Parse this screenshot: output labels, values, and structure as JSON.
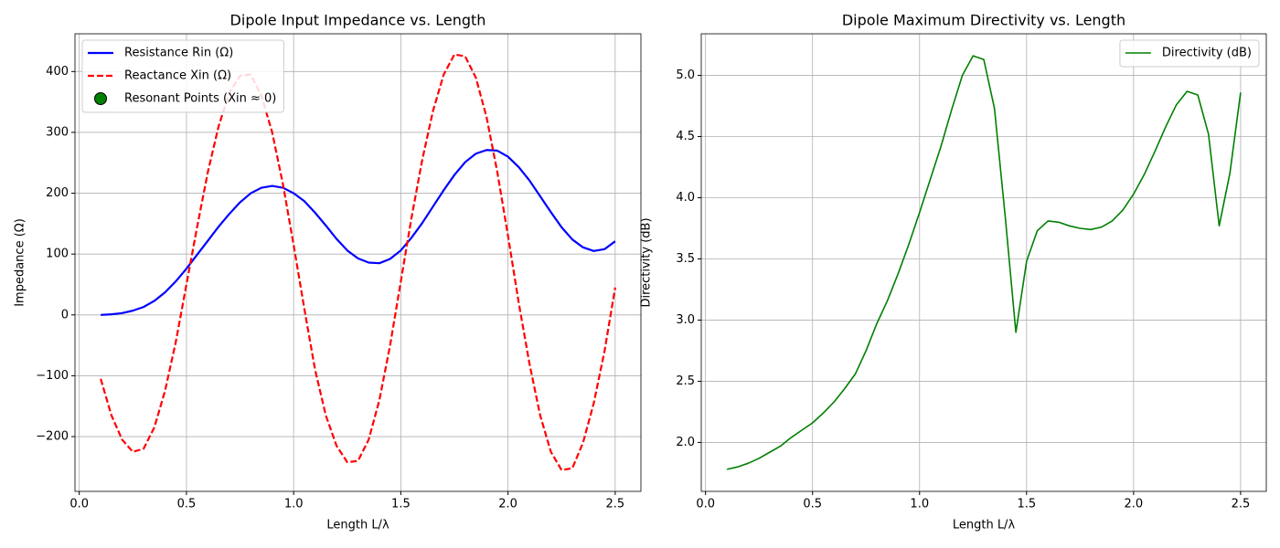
{
  "chart_data": [
    {
      "type": "line",
      "title": "Dipole Input Impedance vs. Length",
      "xlabel": "Length L/λ",
      "ylabel": "Impedance (Ω)",
      "x": [
        0.1,
        0.15,
        0.2,
        0.25,
        0.3,
        0.35,
        0.4,
        0.45,
        0.5,
        0.55,
        0.6,
        0.65,
        0.7,
        0.75,
        0.8,
        0.85,
        0.9,
        0.95,
        1.0,
        1.05,
        1.1,
        1.15,
        1.2,
        1.25,
        1.3,
        1.35,
        1.4,
        1.45,
        1.5,
        1.55,
        1.6,
        1.65,
        1.7,
        1.75,
        1.8,
        1.85,
        1.9,
        1.95,
        2.0,
        2.05,
        2.1,
        2.15,
        2.2,
        2.25,
        2.3,
        2.35,
        2.4,
        2.45,
        2.5
      ],
      "series": [
        {
          "name": "Resistance Rin (Ω)",
          "color": "#0000ff",
          "linestyle": "solid",
          "values": [
            0,
            1,
            3,
            7,
            13,
            23,
            37,
            55,
            76,
            99,
            122,
            145,
            166,
            185,
            200,
            209,
            212,
            209,
            200,
            187,
            168,
            147,
            125,
            106,
            93,
            86,
            85,
            92,
            106,
            127,
            151,
            178,
            205,
            230,
            251,
            265,
            271,
            270,
            260,
            243,
            221,
            195,
            169,
            144,
            124,
            111,
            105,
            108,
            121
          ]
        },
        {
          "name": "Reactance Xin (Ω)",
          "color": "#ff0000",
          "linestyle": "dashed",
          "values": [
            -105,
            -165,
            -205,
            -225,
            -220,
            -185,
            -125,
            -45,
            50,
            145,
            235,
            310,
            365,
            393,
            395,
            360,
            300,
            215,
            115,
            10,
            -90,
            -165,
            -215,
            -242,
            -240,
            -205,
            -140,
            -50,
            55,
            160,
            255,
            335,
            395,
            428,
            425,
            390,
            325,
            235,
            130,
            20,
            -80,
            -165,
            -225,
            -255,
            -252,
            -210,
            -145,
            -60,
            45
          ]
        },
        {
          "name": "Resonant Points (Xin ≈ 0)",
          "color": "#008000",
          "edgecolor": "#000000",
          "marker": "scatter",
          "x": [],
          "values": []
        }
      ],
      "xlim": [
        -0.02,
        2.62
      ],
      "ylim": [
        -290,
        462
      ],
      "xticks": [
        {
          "value": 0,
          "label": "0.0"
        },
        0.5,
        {
          "value": 1,
          "label": "1.0"
        },
        1.5,
        {
          "value": 2,
          "label": "2.0"
        },
        2.5
      ],
      "yticks": [
        {
          "value": -200,
          "label": "−200"
        },
        {
          "value": -100,
          "label": "−100"
        },
        0,
        100,
        200,
        300,
        400
      ],
      "grid": true,
      "legend": "upper left"
    },
    {
      "type": "line",
      "title": "Dipole Maximum Directivity vs. Length",
      "xlabel": "Length L/λ",
      "ylabel": "Directivity (dB)",
      "x": [
        0.1,
        0.15,
        0.2,
        0.25,
        0.3,
        0.35,
        0.4,
        0.45,
        0.5,
        0.55,
        0.6,
        0.65,
        0.7,
        0.75,
        0.8,
        0.85,
        0.9,
        0.95,
        1.0,
        1.05,
        1.1,
        1.15,
        1.2,
        1.25,
        1.3,
        1.35,
        1.4,
        1.45,
        1.5,
        1.55,
        1.6,
        1.65,
        1.7,
        1.75,
        1.8,
        1.85,
        1.9,
        1.95,
        2.0,
        2.05,
        2.1,
        2.15,
        2.2,
        2.25,
        2.3,
        2.35,
        2.4,
        2.45,
        2.5
      ],
      "series": [
        {
          "name": "Directivity (dB)",
          "color": "#008000",
          "linestyle": "solid",
          "values": [
            1.78,
            1.8,
            1.83,
            1.87,
            1.92,
            1.97,
            2.04,
            2.1,
            2.16,
            2.24,
            2.33,
            2.44,
            2.56,
            2.75,
            2.97,
            3.16,
            3.38,
            3.62,
            3.88,
            4.15,
            4.42,
            4.72,
            5.0,
            5.16,
            5.13,
            4.73,
            3.85,
            2.9,
            3.48,
            3.73,
            3.81,
            3.8,
            3.77,
            3.75,
            3.74,
            3.76,
            3.81,
            3.9,
            4.03,
            4.19,
            4.38,
            4.58,
            4.76,
            4.87,
            4.84,
            4.52,
            3.77,
            4.2,
            4.86
          ]
        }
      ],
      "xlim": [
        -0.02,
        2.62
      ],
      "ylim": [
        1.6,
        5.34
      ],
      "xticks": [
        {
          "value": 0,
          "label": "0.0"
        },
        0.5,
        {
          "value": 1,
          "label": "1.0"
        },
        1.5,
        {
          "value": 2,
          "label": "2.0"
        },
        2.5
      ],
      "yticks": [
        {
          "value": 2,
          "label": "2.0"
        },
        2.5,
        {
          "value": 3,
          "label": "3.0"
        },
        3.5,
        {
          "value": 4,
          "label": "4.0"
        },
        4.5,
        {
          "value": 5,
          "label": "5.0"
        }
      ],
      "grid": true,
      "legend": "upper right"
    }
  ]
}
